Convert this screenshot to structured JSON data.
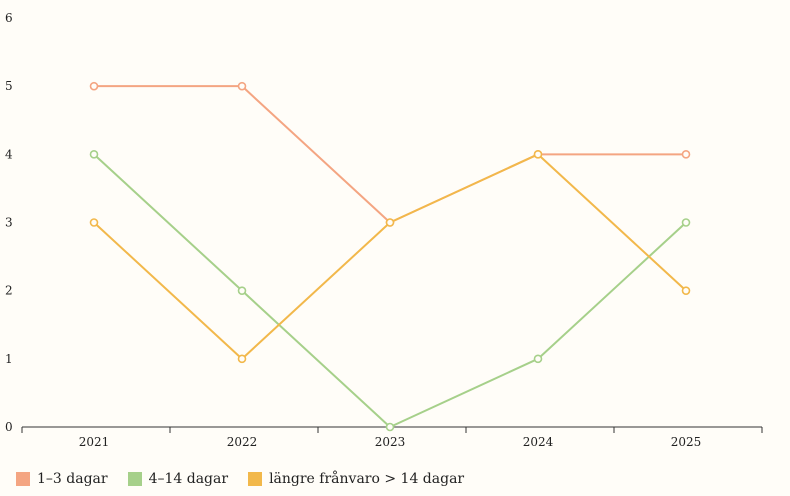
{
  "chart_data": {
    "type": "line",
    "categories": [
      "2021",
      "2022",
      "2023",
      "2024",
      "2025"
    ],
    "ylim": [
      0,
      6
    ],
    "yticks": [
      0,
      1,
      2,
      3,
      4,
      5,
      6
    ],
    "grid": false,
    "legend_position": "bottom-left",
    "series": [
      {
        "name": "1–3 dagar",
        "color": "#f4a582",
        "values": [
          5,
          5,
          3,
          4,
          4
        ]
      },
      {
        "name": "4–14 dagar",
        "color": "#a6d08a",
        "values": [
          4,
          2,
          0,
          1,
          3
        ]
      },
      {
        "name": "längre frånvaro > 14 dagar",
        "color": "#f2b84b",
        "values": [
          3,
          1,
          3,
          4,
          2
        ]
      }
    ]
  }
}
